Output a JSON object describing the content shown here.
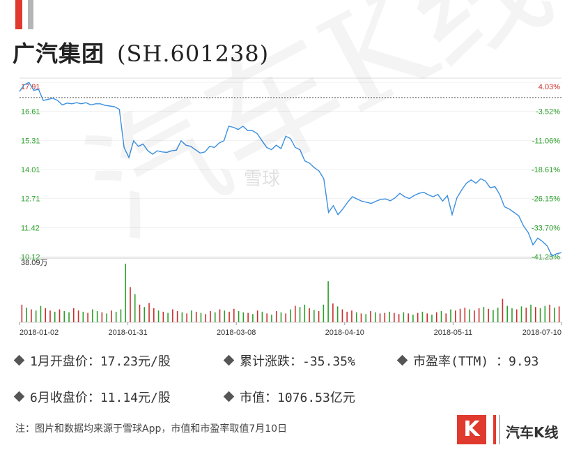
{
  "header": {
    "company": "广汽集团",
    "ticker": "(SH.601238)"
  },
  "colors": {
    "accent": "#e03a2e",
    "accent_gray": "#b5b5b5",
    "line": "#3a8fe0",
    "up": "#c9302c",
    "down": "#2ca02c"
  },
  "chart_data": {
    "type": "line",
    "y_ticks": [
      "17.91",
      "16.61",
      "15.31",
      "14.01",
      "12.71",
      "11.42",
      "10.12"
    ],
    "pct_ticks": [
      "4.03%",
      "-3.52%",
      "-11.06%",
      "-18.61%",
      "-26.15%",
      "-33.70%",
      "-41.25%"
    ],
    "ylim": [
      10.12,
      17.91
    ],
    "reference_price": 17.23,
    "volume_max_label": "38.09万",
    "x_tick_labels": [
      "2018-01-02",
      "2018-01-31",
      "2018-03-08",
      "2018-04-10",
      "2018-05-11",
      "2018-07-10"
    ],
    "series": [
      {
        "values": [
          17.5,
          17.8,
          17.9,
          17.55,
          17.6,
          17.1,
          17.15,
          17.2,
          17.1,
          16.9,
          16.98,
          16.95,
          17.0,
          16.95,
          17.0,
          16.9,
          16.95,
          16.95,
          16.88,
          16.85,
          16.82,
          16.7,
          15.0,
          14.55,
          15.3,
          15.05,
          15.15,
          14.85,
          14.7,
          14.85,
          14.8,
          14.78,
          14.85,
          14.88,
          15.3,
          15.1,
          15.05,
          14.9,
          14.75,
          14.8,
          15.05,
          15.0,
          15.2,
          15.3,
          15.95,
          15.9,
          15.8,
          15.95,
          15.75,
          15.75,
          15.62,
          15.3,
          15.0,
          14.9,
          15.1,
          14.95,
          15.5,
          15.4,
          15.0,
          14.9,
          14.4,
          14.3,
          14.1,
          13.95,
          13.6,
          12.1,
          12.4,
          12.0,
          12.25,
          12.55,
          12.8,
          12.7,
          12.6,
          12.55,
          12.5,
          12.6,
          12.68,
          12.7,
          12.62,
          12.75,
          12.95,
          12.8,
          12.72,
          12.85,
          12.95,
          13.0,
          12.88,
          12.8,
          12.9,
          12.6,
          12.85,
          12.0,
          12.75,
          13.1,
          13.4,
          13.55,
          13.4,
          13.6,
          13.5,
          13.2,
          13.25,
          12.9,
          12.35,
          12.25,
          12.1,
          11.95,
          11.5,
          11.2,
          10.65,
          10.95,
          10.8,
          10.6,
          10.15,
          10.25,
          10.3
        ]
      }
    ],
    "volume": [
      0.3,
      0.25,
      0.22,
      0.2,
      0.28,
      0.24,
      0.2,
      0.18,
      0.22,
      0.19,
      0.17,
      0.24,
      0.2,
      0.18,
      0.16,
      0.22,
      0.19,
      0.17,
      0.15,
      0.2,
      0.18,
      0.22,
      1.0,
      0.6,
      0.48,
      0.3,
      0.26,
      0.33,
      0.24,
      0.2,
      0.18,
      0.16,
      0.22,
      0.19,
      0.17,
      0.15,
      0.2,
      0.18,
      0.16,
      0.14,
      0.19,
      0.17,
      0.22,
      0.2,
      0.18,
      0.23,
      0.19,
      0.17,
      0.16,
      0.14,
      0.2,
      0.18,
      0.15,
      0.13,
      0.19,
      0.17,
      0.15,
      0.22,
      0.28,
      0.26,
      0.3,
      0.24,
      0.21,
      0.19,
      0.3,
      0.7,
      0.32,
      0.27,
      0.22,
      0.18,
      0.2,
      0.17,
      0.15,
      0.14,
      0.19,
      0.17,
      0.15,
      0.16,
      0.18,
      0.16,
      0.14,
      0.17,
      0.15,
      0.13,
      0.16,
      0.18,
      0.15,
      0.13,
      0.17,
      0.19,
      0.15,
      0.22,
      0.2,
      0.23,
      0.25,
      0.22,
      0.2,
      0.24,
      0.26,
      0.23,
      0.21,
      0.25,
      0.4,
      0.28,
      0.24,
      0.22,
      0.27,
      0.25,
      0.3,
      0.26,
      0.24,
      0.28,
      0.3,
      0.25,
      0.27
    ],
    "volume_up": [
      true,
      false,
      true,
      false,
      false,
      true,
      true,
      false,
      true,
      false,
      false,
      true,
      true,
      false,
      true,
      false,
      false,
      true,
      false,
      true,
      false,
      false,
      false,
      true,
      false,
      true,
      false,
      true,
      true,
      false,
      true,
      false,
      true,
      true,
      false,
      true,
      false,
      true,
      false,
      true,
      true,
      false,
      true,
      false,
      true,
      true,
      false,
      false,
      true,
      false,
      true,
      false,
      true,
      false,
      true,
      false,
      true,
      false,
      true,
      false,
      false,
      true,
      false,
      true,
      false,
      false,
      true,
      false,
      true,
      true,
      true,
      false,
      true,
      false,
      true,
      false,
      true,
      true,
      false,
      true,
      true,
      false,
      true,
      false,
      true,
      false,
      true,
      false,
      true,
      false,
      true,
      false,
      true,
      true,
      true,
      false,
      true,
      true,
      false,
      true,
      false,
      false,
      true,
      false,
      false,
      true,
      false,
      true,
      false,
      true,
      false,
      false,
      true,
      false,
      true
    ]
  },
  "stats": {
    "jan_open": "1月开盘价：17.23元/股",
    "cumulative": "累计涨跌：-35.35%",
    "pe": "市盈率(TTM)  ：9.93",
    "jun_close": "6月收盘价：11.14元/股",
    "market_cap": "市值：1076.53亿元"
  },
  "footer": {
    "note": "注：图片和数据均来源于雪球App，市值和市盈率取值7月10日",
    "brand_letter": "K",
    "brand_name": "汽车K线"
  },
  "watermark": {
    "text": "汽车K线",
    "logo_text": "雪球"
  }
}
